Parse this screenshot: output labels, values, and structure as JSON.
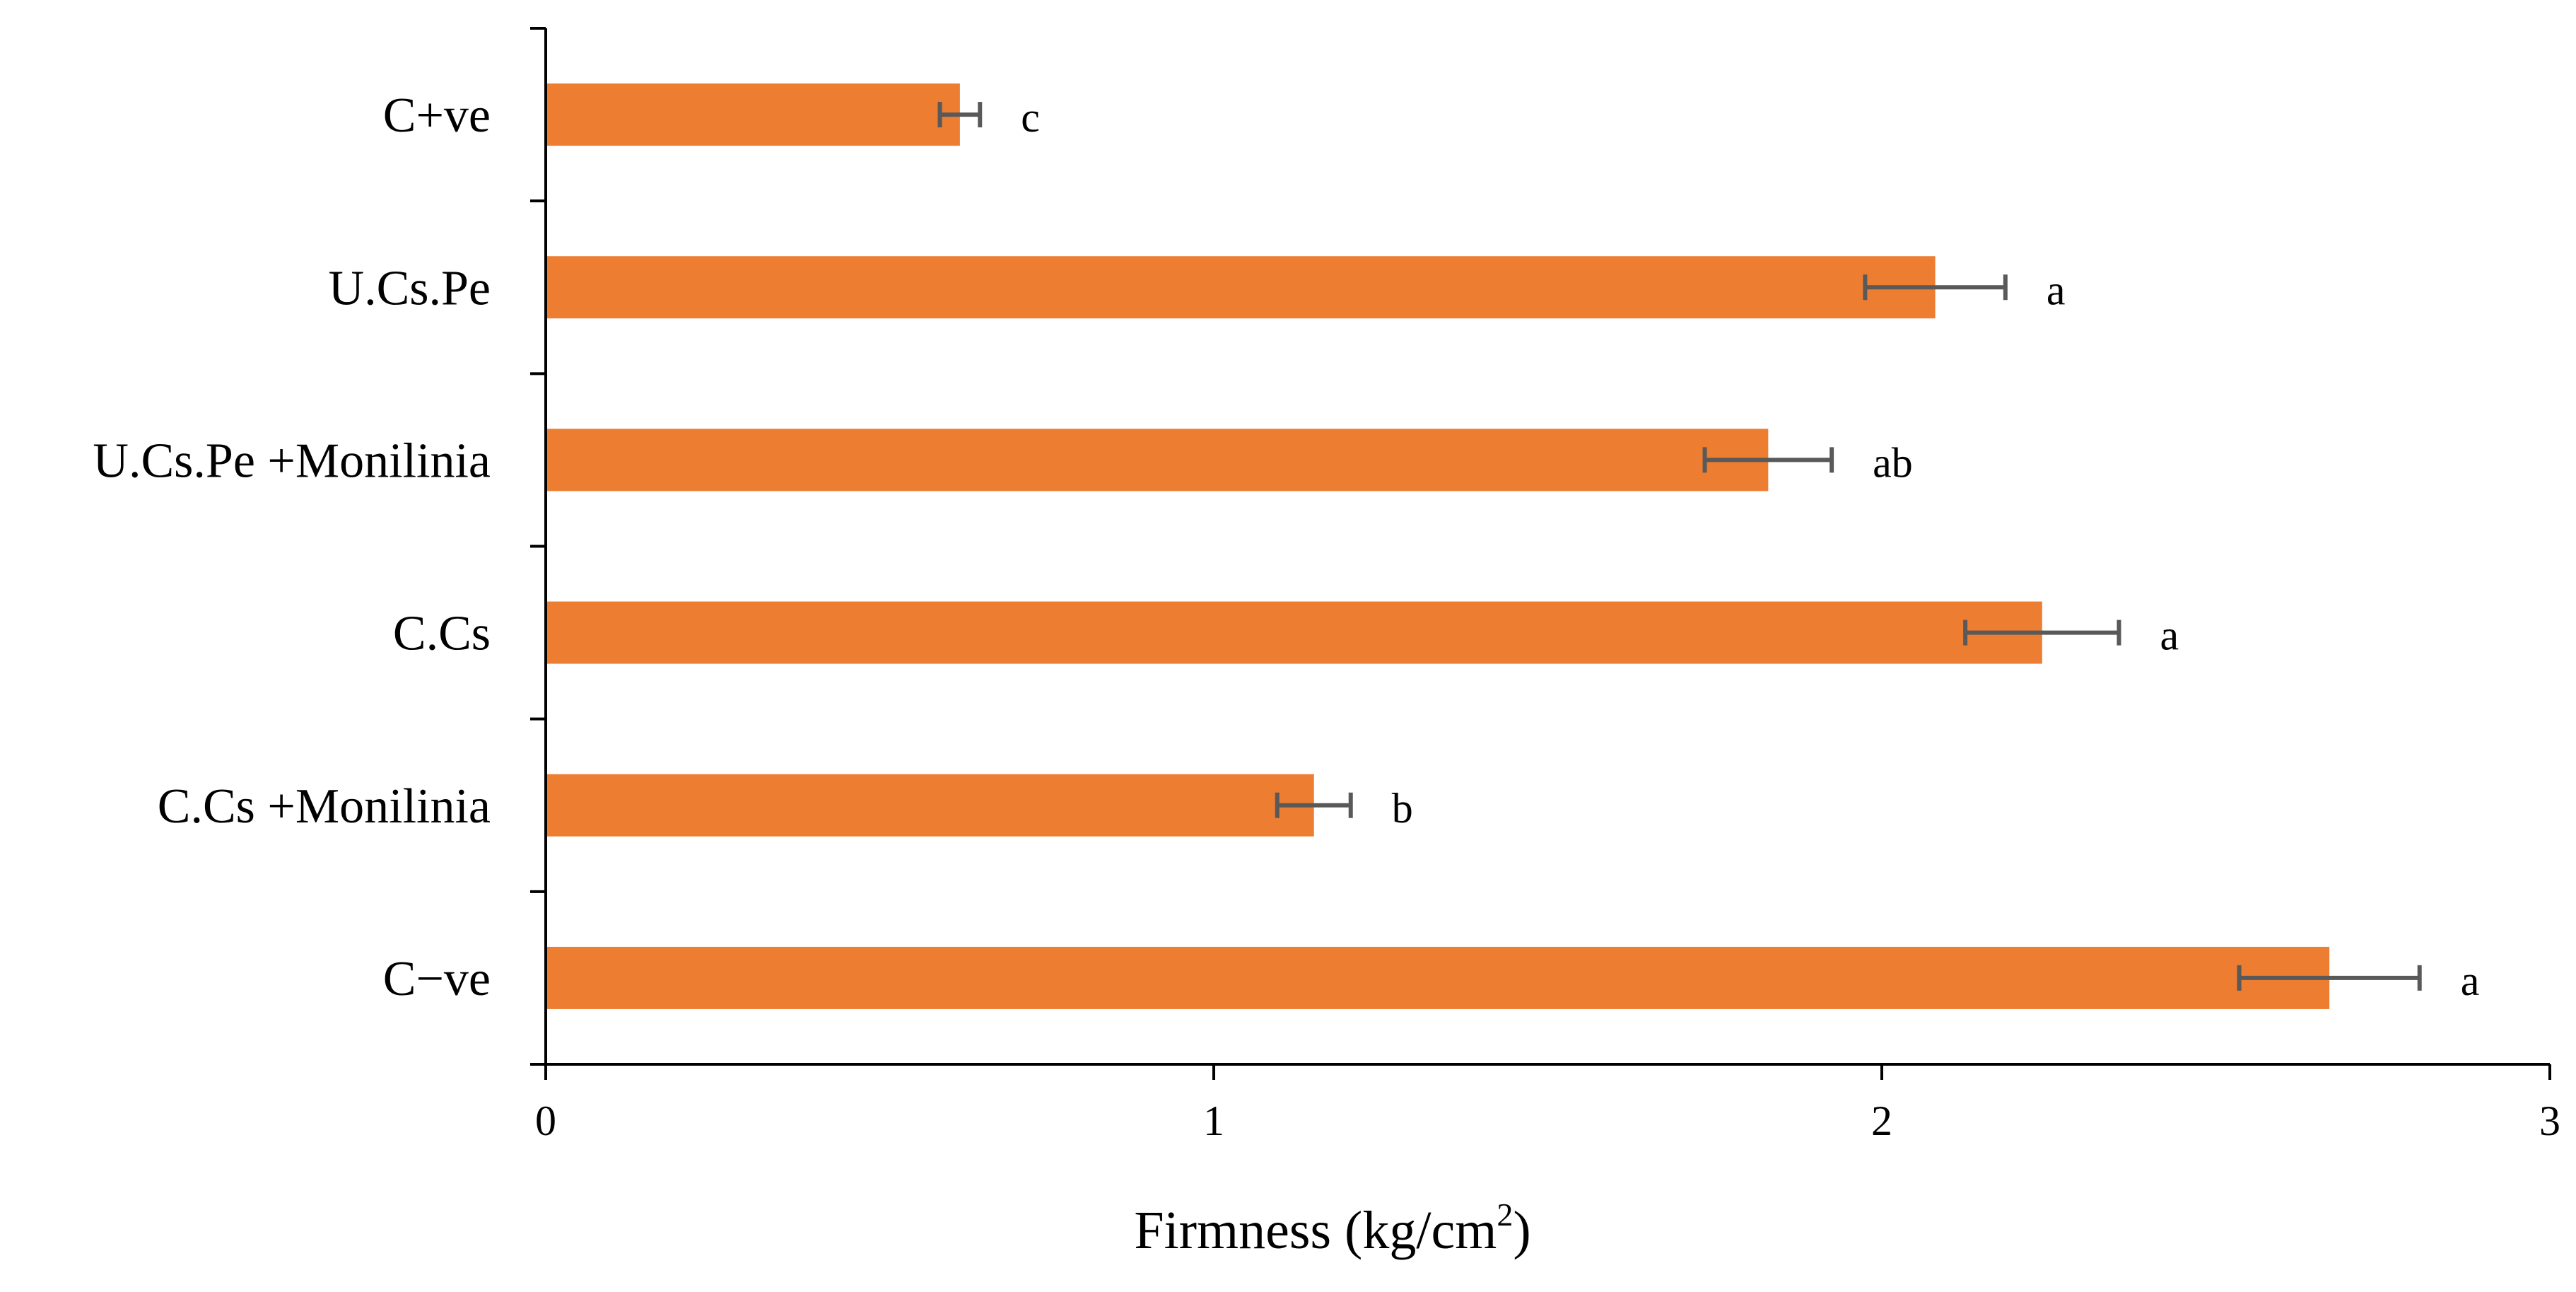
{
  "chart_data": {
    "type": "bar",
    "orientation": "horizontal",
    "categories": [
      "C+ve",
      "U.Cs.Pe",
      "U.Cs.Pe +Monilinia",
      "C.Cs",
      "C.Cs +Monilinia",
      "C−ve"
    ],
    "values": [
      0.62,
      2.08,
      1.83,
      2.24,
      1.15,
      2.67
    ],
    "errors": [
      0.03,
      0.105,
      0.095,
      0.115,
      0.055,
      0.135
    ],
    "letters": [
      "c",
      "a",
      "ab",
      "a",
      "b",
      "a"
    ],
    "xlabel": "Firmness (kg/cm",
    "xlabel_sup": "2",
    "xlabel_suffix": ")",
    "xlim": [
      0,
      3
    ],
    "xticks": [
      0,
      1,
      2,
      3
    ],
    "xtick_labels": [
      "0",
      "1",
      "2",
      "3"
    ],
    "bar_color": "#ED7D31",
    "error_color": "#595959",
    "axis_color": "#000000",
    "grid": false,
    "legend": "none"
  }
}
